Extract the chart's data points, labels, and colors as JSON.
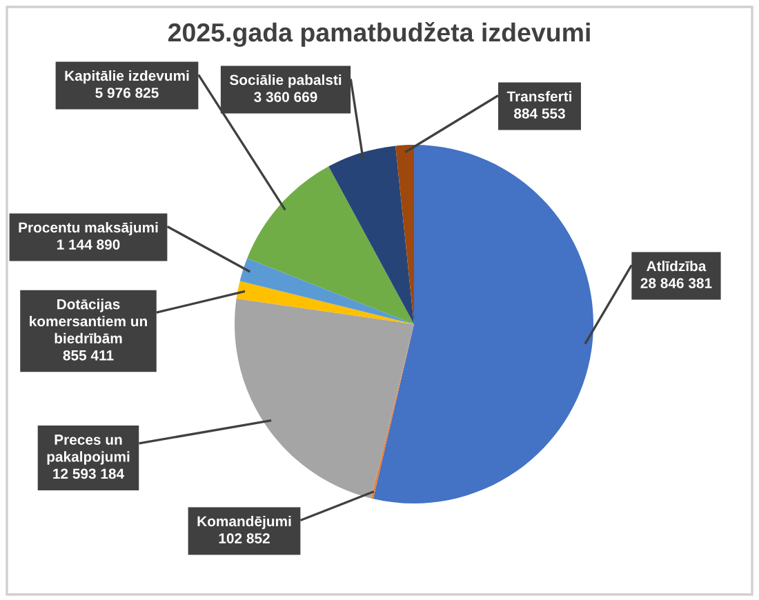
{
  "chart_data": {
    "type": "pie",
    "title": "2025.gada pamatbudžeta izdevumi",
    "categories": [
      "Atlīdzība",
      "Komandējumi",
      "Preces un pakalpojumi",
      "Dotācijas komersantiem un biedrībām",
      "Procentu maksājumi",
      "Kapitālie izdevumi",
      "Sociālie pabalsti",
      "Transferti"
    ],
    "values": [
      28846381,
      102852,
      12593184,
      855411,
      1144890,
      5976825,
      3360669,
      884553
    ],
    "value_labels": [
      "28 846 381",
      "102 852",
      "12 593 184",
      "855 411",
      "1 144 890",
      "5 976 825",
      "3 360 669",
      "884 553"
    ],
    "colors": [
      "#4472c4",
      "#ed7d31",
      "#a5a5a5",
      "#ffc000",
      "#5b9bd5",
      "#70ad47",
      "#264478",
      "#9e480e"
    ]
  }
}
